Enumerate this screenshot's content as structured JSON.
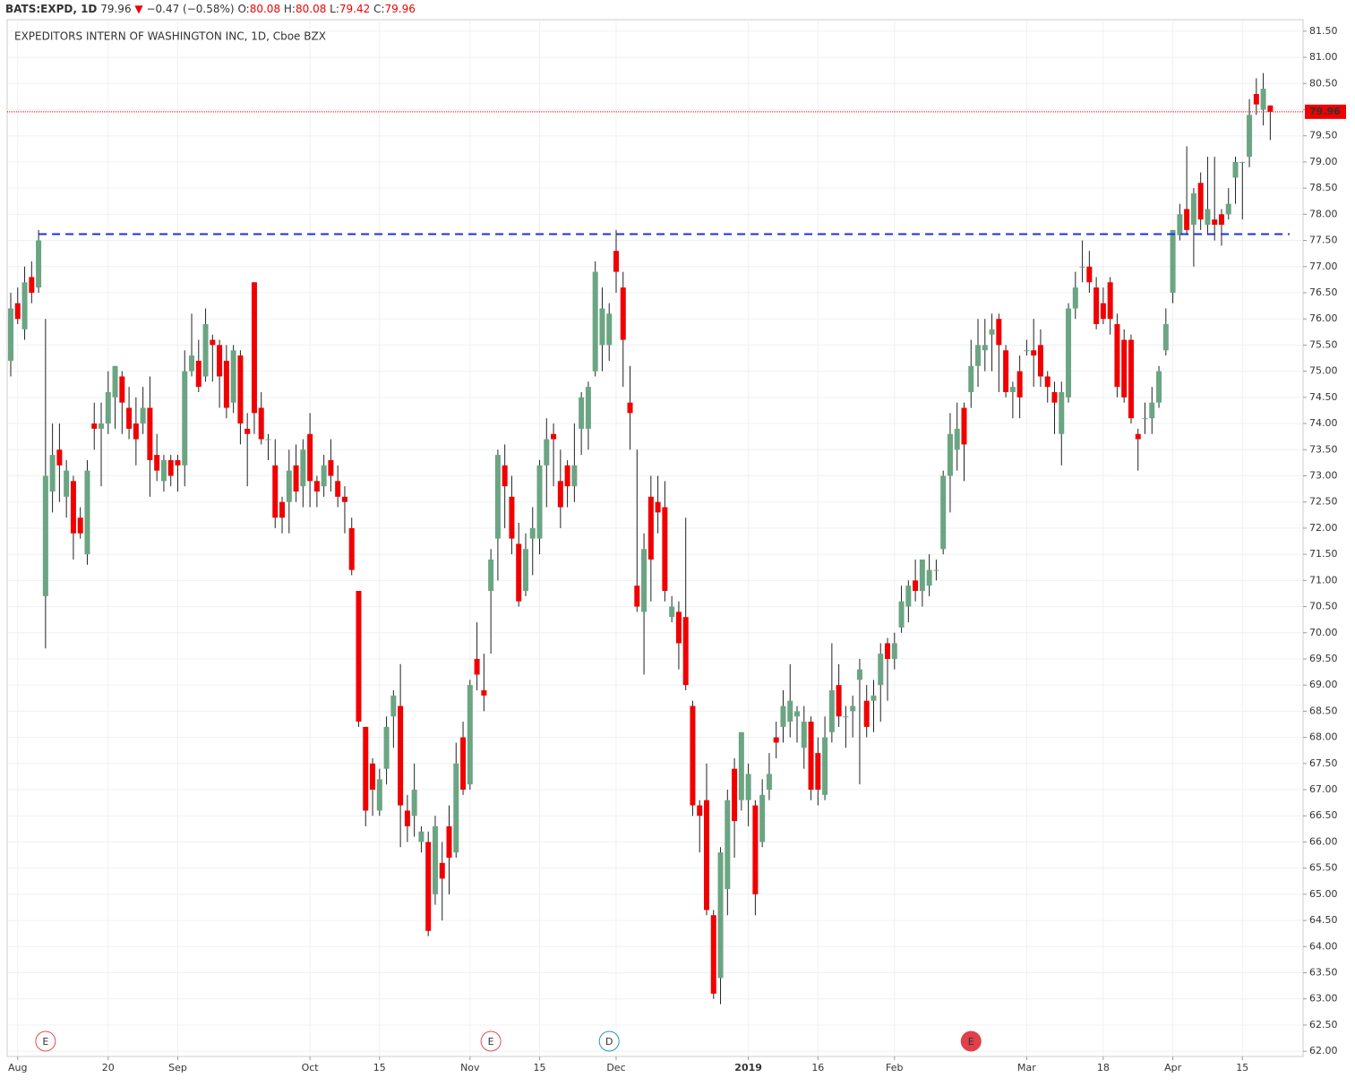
{
  "header": {
    "symbol": "BATS:EXPD, 1D",
    "last": "79.96",
    "arrow": "▼",
    "change": "−0.47 (−0.58%)",
    "ohlc": [
      {
        "key": "O:",
        "value": "80.08"
      },
      {
        "key": "H:",
        "value": "80.08"
      },
      {
        "key": "L:",
        "value": "79.42"
      },
      {
        "key": "C:",
        "value": "79.96"
      }
    ]
  },
  "chart_data": {
    "type": "candlestick",
    "title": "EXPEDITORS INTERN OF WASHINGTON INC, 1D, Cboe BZX",
    "color_up": "#6ba583",
    "color_down": "#f00000",
    "grid": true,
    "open": [
      75.2,
      76.3,
      75.8,
      76.8,
      76.6,
      70.7,
      72.7,
      73.5,
      72.6,
      72.9,
      72.2,
      71.5,
      74.0,
      73.9,
      74.0,
      74.5,
      74.9,
      74.3,
      74.0,
      74.0,
      74.3,
      73.4,
      72.9,
      73.3,
      73.3,
      73.2,
      75.0,
      75.2,
      74.9,
      75.6,
      75.5,
      75.2,
      74.4,
      75.3,
      73.9,
      76.7,
      74.3,
      73.7,
      73.2,
      72.5,
      72.5,
      73.2,
      72.8,
      73.8,
      72.9,
      72.8,
      73.3,
      72.9,
      72.6,
      72.0,
      70.8,
      68.2,
      67.5,
      66.6,
      67.4,
      68.4,
      68.6,
      66.6,
      66.5,
      66.0,
      66.0,
      65.0,
      65.6,
      66.3,
      65.8,
      68.0,
      67.1,
      69.5,
      68.9,
      70.8,
      71.8,
      73.2,
      72.6,
      71.7,
      70.8,
      71.8,
      71.8,
      73.2,
      73.8,
      72.9,
      73.2,
      72.8,
      73.9,
      73.9,
      75.0,
      75.5,
      75.5,
      77.3,
      76.6,
      74.4,
      70.9,
      70.4,
      72.6,
      72.5,
      72.4,
      70.3,
      70.4,
      70.3,
      68.6,
      66.7,
      66.8,
      64.6,
      63.4,
      65.1,
      67.4,
      66.8,
      66.8,
      66.7,
      66.0,
      67.0,
      68.0,
      68.2,
      68.3,
      68.4,
      67.8,
      68.3,
      67.7,
      66.9,
      68.1,
      69.0,
      68.4,
      68.5,
      69.1,
      68.7,
      68.7,
      69.0,
      69.8,
      69.5,
      70.1,
      70.5,
      71.0,
      70.8,
      70.9,
      71.2,
      71.6,
      73.0,
      73.5,
      74.3,
      74.6,
      75.1,
      75.4,
      75.7,
      76.0,
      75.4,
      74.6,
      75.0,
      75.4,
      75.4,
      75.5,
      74.9,
      74.6,
      73.8,
      74.5,
      76.2,
      77.0,
      77.0,
      76.6,
      76.3,
      76.7,
      75.9,
      75.6,
      75.6,
      73.8,
      74.1,
      74.1,
      74.4,
      75.4,
      76.5,
      77.6,
      78.1,
      77.8,
      78.6,
      77.8,
      77.9,
      78.0,
      78.0,
      78.7,
      79.0,
      79.1,
      80.3,
      80.0,
      80.08
    ],
    "high": [
      76.5,
      76.6,
      77.0,
      77.1,
      77.7,
      76.0,
      74.0,
      74.0,
      73.3,
      73.0,
      72.4,
      73.3,
      74.4,
      74.4,
      75.0,
      75.1,
      75.0,
      74.7,
      74.5,
      74.7,
      74.9,
      73.8,
      73.4,
      73.4,
      73.4,
      75.4,
      76.1,
      75.6,
      76.2,
      75.7,
      75.6,
      75.5,
      75.5,
      75.4,
      74.2,
      76.7,
      74.6,
      73.8,
      73.7,
      72.6,
      73.5,
      73.6,
      73.7,
      74.2,
      73.0,
      73.4,
      73.7,
      73.2,
      72.8,
      72.2,
      70.8,
      68.2,
      67.6,
      67.4,
      68.4,
      68.9,
      69.4,
      66.9,
      67.5,
      66.3,
      66.2,
      66.5,
      66.0,
      66.7,
      67.9,
      68.3,
      69.1,
      70.2,
      69.6,
      71.6,
      73.5,
      73.6,
      73.0,
      72.1,
      71.9,
      72.4,
      73.3,
      74.1,
      74.0,
      73.5,
      73.3,
      74.0,
      74.6,
      74.8,
      77.1,
      76.6,
      76.3,
      77.7,
      76.9,
      75.1,
      73.5,
      71.9,
      73.0,
      73.0,
      72.9,
      70.7,
      70.6,
      72.2,
      68.7,
      66.8,
      67.5,
      64.7,
      65.9,
      67.0,
      67.6,
      68.1,
      67.5,
      66.8,
      67.2,
      67.7,
      68.3,
      68.9,
      69.4,
      68.6,
      68.6,
      68.4,
      68.0,
      68.4,
      69.8,
      69.4,
      68.6,
      68.8,
      69.5,
      69.0,
      69.1,
      69.8,
      69.9,
      70.0,
      70.9,
      71.0,
      71.4,
      71.4,
      71.5,
      71.4,
      73.1,
      74.2,
      74.4,
      74.4,
      75.6,
      76.0,
      76.0,
      76.1,
      76.1,
      75.5,
      74.8,
      75.3,
      75.6,
      76.0,
      75.8,
      75.0,
      74.8,
      74.8,
      76.3,
      76.9,
      77.5,
      77.3,
      76.8,
      76.6,
      76.8,
      76.1,
      75.8,
      75.7,
      73.9,
      74.4,
      74.7,
      75.1,
      76.2,
      77.7,
      78.2,
      79.3,
      78.5,
      78.8,
      79.1,
      79.1,
      78.1,
      78.5,
      79.1,
      79.0,
      80.2,
      80.6,
      80.7,
      80.08
    ],
    "low": [
      74.9,
      75.9,
      75.6,
      76.3,
      76.5,
      69.7,
      72.3,
      72.5,
      72.2,
      71.4,
      71.8,
      71.3,
      73.5,
      72.8,
      73.8,
      73.9,
      73.8,
      73.7,
      73.2,
      73.8,
      72.6,
      72.9,
      72.7,
      72.8,
      72.7,
      72.8,
      74.9,
      74.6,
      74.8,
      74.8,
      74.3,
      74.1,
      74.2,
      73.6,
      72.8,
      73.8,
      73.6,
      73.3,
      72.0,
      71.9,
      71.9,
      72.5,
      72.4,
      72.4,
      72.4,
      72.6,
      72.7,
      72.4,
      71.9,
      71.1,
      68.2,
      66.3,
      66.5,
      66.5,
      67.1,
      67.8,
      65.9,
      66.0,
      66.1,
      65.8,
      64.2,
      64.8,
      64.5,
      65.0,
      65.7,
      66.9,
      67.0,
      68.9,
      68.5,
      69.6,
      71.0,
      72.0,
      71.5,
      70.5,
      70.7,
      71.1,
      71.5,
      72.4,
      72.8,
      72.0,
      72.4,
      72.5,
      73.4,
      73.5,
      74.9,
      75.0,
      75.2,
      76.5,
      74.7,
      73.5,
      70.4,
      69.2,
      70.6,
      71.9,
      70.6,
      70.2,
      69.3,
      68.9,
      66.5,
      65.8,
      64.6,
      63.0,
      62.9,
      64.6,
      65.7,
      66.6,
      66.3,
      64.6,
      65.9,
      66.8,
      67.6,
      67.9,
      68.0,
      67.9,
      67.4,
      66.8,
      66.7,
      66.8,
      67.9,
      68.2,
      67.8,
      68.0,
      67.1,
      68.0,
      68.1,
      68.3,
      68.7,
      69.3,
      70.0,
      70.2,
      70.6,
      70.5,
      70.7,
      71.0,
      71.5,
      72.3,
      73.1,
      72.9,
      74.3,
      74.7,
      75.0,
      75.0,
      74.6,
      74.5,
      74.1,
      74.1,
      75.3,
      74.7,
      74.7,
      74.4,
      73.8,
      73.2,
      74.4,
      76.0,
      76.7,
      76.5,
      75.8,
      75.9,
      75.7,
      74.5,
      74.4,
      74.0,
      73.1,
      73.8,
      73.8,
      74.3,
      75.3,
      76.3,
      77.5,
      77.6,
      77.0,
      77.7,
      77.6,
      77.5,
      77.4,
      77.9,
      78.2,
      77.9,
      78.9,
      79.9,
      79.7,
      79.42
    ],
    "close": [
      76.2,
      76.0,
      76.7,
      76.5,
      77.5,
      73.0,
      73.4,
      73.2,
      73.1,
      71.9,
      71.9,
      73.1,
      73.9,
      74.0,
      74.6,
      75.1,
      74.4,
      73.9,
      73.7,
      74.3,
      73.3,
      73.1,
      73.3,
      73.0,
      73.2,
      75.0,
      75.3,
      74.7,
      75.9,
      75.5,
      74.9,
      74.3,
      75.4,
      74.0,
      73.8,
      74.2,
      73.7,
      73.7,
      72.2,
      72.2,
      73.1,
      72.7,
      73.5,
      72.9,
      72.7,
      73.2,
      73.0,
      72.6,
      72.5,
      71.2,
      68.3,
      66.6,
      67.0,
      67.2,
      68.2,
      68.8,
      66.7,
      66.3,
      67.0,
      66.2,
      64.3,
      66.3,
      65.3,
      65.7,
      67.5,
      67.0,
      69.0,
      69.2,
      68.8,
      71.4,
      73.4,
      72.8,
      71.8,
      70.6,
      71.6,
      72.0,
      73.2,
      73.7,
      73.7,
      72.4,
      72.8,
      73.2,
      74.5,
      74.7,
      76.9,
      76.2,
      76.1,
      76.9,
      75.6,
      74.2,
      70.5,
      71.6,
      71.4,
      72.3,
      70.8,
      70.5,
      69.8,
      69.0,
      66.7,
      66.5,
      64.7,
      63.1,
      65.8,
      66.8,
      66.4,
      68.1,
      67.3,
      65.0,
      66.9,
      67.3,
      67.9,
      68.6,
      68.7,
      68.5,
      68.3,
      67.0,
      67.0,
      68.0,
      68.9,
      68.4,
      68.4,
      68.6,
      69.3,
      68.2,
      68.8,
      69.6,
      69.5,
      69.8,
      70.6,
      70.9,
      70.8,
      71.4,
      71.2,
      71.2,
      73.0,
      73.8,
      73.9,
      73.6,
      75.1,
      75.5,
      75.5,
      75.8,
      75.5,
      74.6,
      74.7,
      74.5,
      75.4,
      75.3,
      74.9,
      74.7,
      74.4,
      74.6,
      76.2,
      76.6,
      77.0,
      76.7,
      75.9,
      76.0,
      76.0,
      74.7,
      74.5,
      74.1,
      73.7,
      74.1,
      74.4,
      75.0,
      75.9,
      77.7,
      78.0,
      77.7,
      78.4,
      77.9,
      78.1,
      77.8,
      77.8,
      78.2,
      79.0,
      79.0,
      79.9,
      80.1,
      80.4,
      79.96
    ],
    "ylim": [
      61.9,
      81.72
    ],
    "yticks": [
      {
        "value": 62,
        "label": "62.00"
      },
      {
        "value": 62.5,
        "label": "62.50"
      },
      {
        "value": 63,
        "label": "63.00"
      },
      {
        "value": 63.5,
        "label": "63.50"
      },
      {
        "value": 64,
        "label": "64.00"
      },
      {
        "value": 64.5,
        "label": "64.50"
      },
      {
        "value": 65,
        "label": "65.00"
      },
      {
        "value": 65.5,
        "label": "65.50"
      },
      {
        "value": 66,
        "label": "66.00"
      },
      {
        "value": 66.5,
        "label": "66.50"
      },
      {
        "value": 67,
        "label": "67.00"
      },
      {
        "value": 67.5,
        "label": "67.50"
      },
      {
        "value": 68,
        "label": "68.00"
      },
      {
        "value": 68.5,
        "label": "68.50"
      },
      {
        "value": 69,
        "label": "69.00"
      },
      {
        "value": 69.5,
        "label": "69.50"
      },
      {
        "value": 70,
        "label": "70.00"
      },
      {
        "value": 70.5,
        "label": "70.50"
      },
      {
        "value": 71,
        "label": "71.00"
      },
      {
        "value": 71.5,
        "label": "71.50"
      },
      {
        "value": 72,
        "label": "72.00"
      },
      {
        "value": 72.5,
        "label": "72.50"
      },
      {
        "value": 73,
        "label": "73.00"
      },
      {
        "value": 73.5,
        "label": "73.50"
      },
      {
        "value": 74,
        "label": "74.00"
      },
      {
        "value": 74.5,
        "label": "74.50"
      },
      {
        "value": 75,
        "label": "75.00"
      },
      {
        "value": 75.5,
        "label": "75.50"
      },
      {
        "value": 76,
        "label": "76.00"
      },
      {
        "value": 76.5,
        "label": "76.50"
      },
      {
        "value": 77,
        "label": "77.00"
      },
      {
        "value": 77.5,
        "label": "77.50"
      },
      {
        "value": 78,
        "label": "78.00"
      },
      {
        "value": 78.5,
        "label": "78.50"
      },
      {
        "value": 79,
        "label": "79.00"
      },
      {
        "value": 79.5,
        "label": "79.50"
      },
      {
        "value": 80,
        "label": "80.00"
      },
      {
        "value": 80.5,
        "label": "80.50"
      },
      {
        "value": 81,
        "label": "81.00"
      },
      {
        "value": 81.5,
        "label": "81.50"
      }
    ],
    "xticks": [
      {
        "value": 1,
        "label": "Aug"
      },
      {
        "value": 14,
        "label": "20"
      },
      {
        "value": 24,
        "label": "Sep"
      },
      {
        "value": 43,
        "label": "Oct"
      },
      {
        "value": 53,
        "label": "15"
      },
      {
        "value": 66,
        "label": "Nov"
      },
      {
        "value": 76,
        "label": "15"
      },
      {
        "value": 87,
        "label": "Dec"
      },
      {
        "value": 106,
        "label": "2019"
      },
      {
        "value": 116,
        "label": "16"
      },
      {
        "value": 127,
        "label": "Feb"
      },
      {
        "value": 146,
        "label": "Mar"
      },
      {
        "value": 157,
        "label": "18"
      },
      {
        "value": 167,
        "label": "Apr"
      },
      {
        "value": 177,
        "label": "15"
      }
    ],
    "events": [
      {
        "label": "E",
        "index": 5,
        "color": "#e05050",
        "filled": false
      },
      {
        "label": "E",
        "index": 69,
        "color": "#e05050",
        "filled": false
      },
      {
        "label": "D",
        "index": 86,
        "color": "#2196c8",
        "filled": false
      },
      {
        "label": "E",
        "index": 138,
        "color": "#e0404a",
        "filled": true
      }
    ],
    "last_price": 79.96,
    "last_price_color": "#f00000",
    "level": 77.62,
    "level_start": 4,
    "level_color": "#1f2fe0"
  }
}
